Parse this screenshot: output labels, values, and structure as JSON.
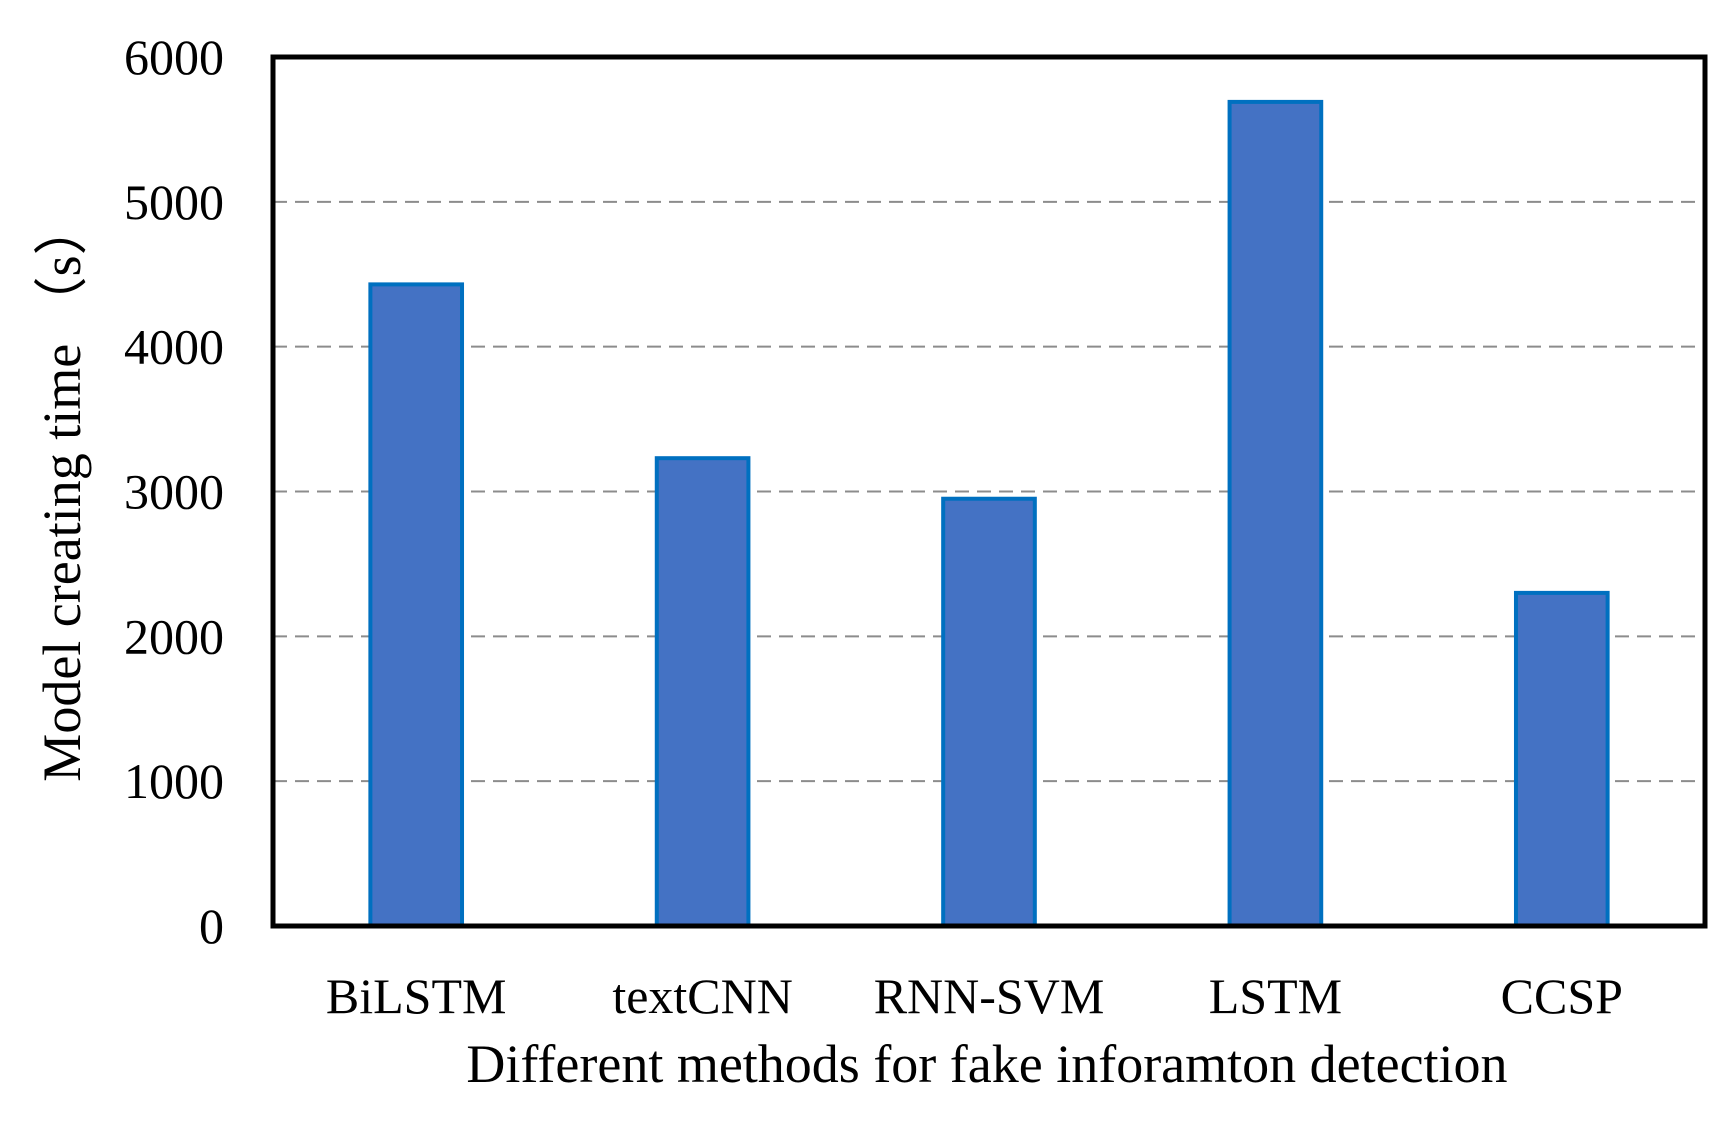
{
  "chart_data": {
    "type": "bar",
    "title": "",
    "xlabel": "Different methods for fake inforamton detection",
    "ylabel": "Model creating time （s）",
    "categories": [
      "BiLSTM",
      "textCNN",
      "RNN-SVM",
      "LSTM",
      "CCSP"
    ],
    "series": [
      {
        "values": [
          4430,
          3230,
          2950,
          5690,
          2300
        ]
      }
    ],
    "ylim": [
      0,
      6000
    ],
    "yticks": [
      0,
      1000,
      2000,
      3000,
      4000,
      5000,
      6000
    ],
    "grid": "horizontal-dashed",
    "legend": "none",
    "bar_color": "#4472C4",
    "bar_edge_color": "#0070C0"
  }
}
